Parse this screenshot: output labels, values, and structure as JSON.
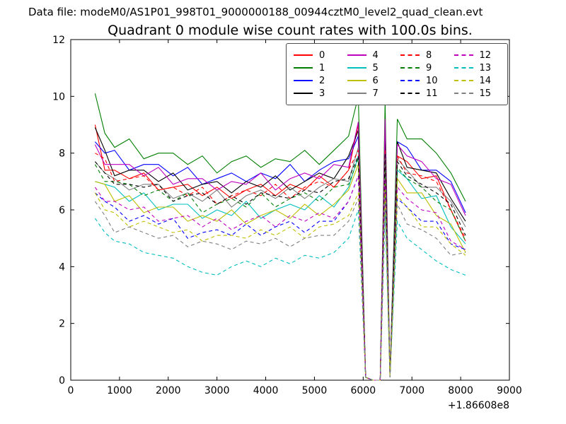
{
  "header": {
    "data_file": "Data file: modeM0/AS1P01_998T01_9000000188_00944cztM0_level2_quad_clean.evt"
  },
  "chart_data": {
    "type": "line",
    "title": "Quadrant 0 module wise count rates with 100.0s bins.",
    "xlabel": "",
    "ylabel": "",
    "xlim": [
      0,
      9000
    ],
    "ylim": [
      0,
      12
    ],
    "xticks": [
      0,
      1000,
      2000,
      3000,
      4000,
      5000,
      6000,
      7000,
      8000,
      9000
    ],
    "yticks": [
      0,
      2,
      4,
      6,
      8,
      10,
      12
    ],
    "x_offset_label": "+1.86608e8",
    "grid": false,
    "legend_position": "upper center",
    "legend_columns": 4,
    "x": [
      500,
      700,
      900,
      1200,
      1500,
      1800,
      2100,
      2400,
      2700,
      3000,
      3300,
      3600,
      3900,
      4200,
      4500,
      4800,
      5100,
      5400,
      5700,
      5900,
      6050,
      6200,
      6350,
      6450,
      6550,
      6700,
      6900,
      7200,
      7500,
      7800,
      8100
    ],
    "series": [
      {
        "label": "0",
        "color": "#ff0000",
        "dash": false,
        "values": [
          9.0,
          7.4,
          7.4,
          7.1,
          7.3,
          6.7,
          6.8,
          6.9,
          6.5,
          6.8,
          6.4,
          6.7,
          6.9,
          6.5,
          6.9,
          6.7,
          7.2,
          6.8,
          7.4,
          9.0,
          0.1,
          0.0,
          0.0,
          8.2,
          0.1,
          7.9,
          7.7,
          7.1,
          7.2,
          6.0,
          4.9
        ]
      },
      {
        "label": "1",
        "color": "#007f00",
        "dash": false,
        "values": [
          10.1,
          8.7,
          8.2,
          8.5,
          7.8,
          8.0,
          8.0,
          7.6,
          7.9,
          7.3,
          7.7,
          7.9,
          7.5,
          7.8,
          7.7,
          8.1,
          7.6,
          8.1,
          8.6,
          10.0,
          0.1,
          0.0,
          0.0,
          9.8,
          0.1,
          9.2,
          8.5,
          8.5,
          8.0,
          7.3,
          6.3
        ]
      },
      {
        "label": "2",
        "color": "#0000ff",
        "dash": false,
        "values": [
          8.4,
          8.0,
          8.1,
          7.4,
          7.6,
          7.6,
          7.2,
          7.5,
          6.9,
          7.1,
          7.3,
          7.0,
          7.3,
          7.1,
          7.6,
          7.0,
          7.4,
          7.7,
          7.8,
          8.6,
          0.1,
          0.0,
          0.0,
          8.7,
          0.1,
          8.4,
          8.2,
          7.4,
          7.4,
          7.0,
          5.9
        ]
      },
      {
        "label": "3",
        "color": "#000000",
        "dash": false,
        "values": [
          8.9,
          8.1,
          7.2,
          7.4,
          7.4,
          7.0,
          7.3,
          6.7,
          6.9,
          7.0,
          6.6,
          7.0,
          6.8,
          7.2,
          6.7,
          7.0,
          7.3,
          7.1,
          7.9,
          8.8,
          0.1,
          0.0,
          0.0,
          8.4,
          0.1,
          8.4,
          7.5,
          7.4,
          7.3,
          6.4,
          5.6
        ]
      },
      {
        "label": "4",
        "color": "#bf00bf",
        "dash": false,
        "values": [
          8.3,
          7.6,
          7.6,
          7.6,
          7.2,
          7.5,
          6.9,
          7.1,
          7.1,
          6.7,
          7.0,
          6.9,
          7.3,
          6.7,
          7.1,
          7.3,
          7.1,
          7.6,
          7.5,
          9.1,
          0.1,
          0.0,
          0.0,
          9.2,
          0.1,
          8.3,
          7.9,
          7.7,
          7.1,
          6.9,
          5.8
        ]
      },
      {
        "label": "5",
        "color": "#00bfbf",
        "dash": false,
        "values": [
          7.0,
          6.9,
          6.8,
          6.3,
          6.6,
          6.0,
          6.2,
          6.2,
          5.7,
          6.0,
          5.8,
          6.3,
          5.7,
          6.0,
          6.2,
          6.0,
          6.5,
          6.1,
          6.8,
          7.9,
          0.1,
          0.0,
          0.0,
          7.5,
          0.1,
          7.4,
          7.1,
          6.4,
          6.5,
          5.4,
          4.8
        ]
      },
      {
        "label": "6",
        "color": "#bfbf00",
        "dash": false,
        "values": [
          7.0,
          6.9,
          6.3,
          6.5,
          5.9,
          6.1,
          6.1,
          5.6,
          5.8,
          5.6,
          6.0,
          5.5,
          5.8,
          6.0,
          5.7,
          6.2,
          5.8,
          6.2,
          6.7,
          7.6,
          0.1,
          0.0,
          0.0,
          7.3,
          0.1,
          7.1,
          6.6,
          6.6,
          5.8,
          5.5,
          4.5
        ]
      },
      {
        "label": "7",
        "color": "#7f7f7f",
        "dash": false,
        "values": [
          7.7,
          7.3,
          7.1,
          6.7,
          6.9,
          6.9,
          6.4,
          6.6,
          6.3,
          6.7,
          6.1,
          6.5,
          6.7,
          6.4,
          6.8,
          6.4,
          6.8,
          7.1,
          7.0,
          8.2,
          0.1,
          0.0,
          0.0,
          8.0,
          0.1,
          7.8,
          7.4,
          6.8,
          6.8,
          6.3,
          5.4
        ]
      },
      {
        "label": "8",
        "color": "#ff0000",
        "dash": true,
        "values": [
          8.0,
          7.8,
          7.0,
          7.1,
          7.2,
          6.7,
          6.8,
          6.5,
          6.8,
          6.2,
          6.5,
          6.7,
          6.5,
          6.9,
          6.4,
          6.8,
          7.0,
          6.8,
          7.4,
          8.1,
          0.1,
          0.0,
          0.0,
          8.1,
          0.1,
          7.9,
          7.3,
          7.2,
          7.0,
          6.0,
          5.0
        ]
      },
      {
        "label": "9",
        "color": "#007f00",
        "dash": true,
        "values": [
          7.6,
          7.0,
          7.0,
          6.9,
          6.5,
          6.7,
          6.3,
          6.6,
          5.9,
          6.2,
          6.4,
          6.1,
          6.6,
          6.1,
          6.4,
          6.6,
          6.3,
          6.8,
          6.9,
          7.8,
          0.1,
          0.0,
          0.0,
          7.8,
          0.1,
          7.5,
          7.1,
          6.8,
          6.3,
          6.0,
          4.9
        ]
      },
      {
        "label": "10",
        "color": "#0000ff",
        "dash": true,
        "values": [
          6.6,
          6.3,
          6.1,
          5.6,
          5.8,
          5.5,
          5.7,
          5.0,
          5.2,
          5.3,
          5.1,
          5.5,
          5.1,
          5.4,
          5.6,
          5.2,
          5.6,
          5.6,
          6.3,
          7.2,
          0.1,
          0.0,
          0.0,
          6.8,
          0.1,
          6.4,
          6.1,
          5.6,
          5.6,
          4.8,
          4.6
        ]
      },
      {
        "label": "11",
        "color": "#000000",
        "dash": true,
        "values": [
          7.7,
          7.3,
          6.9,
          6.9,
          6.8,
          6.9,
          6.3,
          6.5,
          6.6,
          6.2,
          6.5,
          6.2,
          6.6,
          6.5,
          6.4,
          6.7,
          6.6,
          7.0,
          7.1,
          7.9,
          0.1,
          0.0,
          0.0,
          8.0,
          0.1,
          7.7,
          7.2,
          6.9,
          6.6,
          6.2,
          5.1
        ]
      },
      {
        "label": "12",
        "color": "#bf00bf",
        "dash": true,
        "values": [
          6.8,
          6.3,
          6.3,
          6.0,
          6.1,
          5.6,
          5.7,
          5.8,
          5.4,
          5.7,
          5.3,
          5.6,
          5.8,
          5.4,
          5.8,
          5.6,
          5.9,
          5.7,
          6.3,
          7.2,
          0.1,
          0.0,
          0.0,
          7.1,
          0.1,
          6.8,
          6.4,
          6.0,
          5.9,
          4.9,
          4.6
        ]
      },
      {
        "label": "13",
        "color": "#00bfbf",
        "dash": true,
        "values": [
          5.7,
          5.2,
          4.9,
          4.8,
          4.5,
          4.4,
          4.3,
          4.0,
          3.8,
          3.7,
          4.0,
          4.2,
          4.0,
          4.3,
          4.1,
          4.4,
          4.3,
          4.5,
          5.0,
          6.0,
          0.1,
          0.0,
          0.0,
          5.9,
          0.1,
          5.6,
          5.0,
          4.6,
          4.2,
          3.9,
          3.7
        ]
      },
      {
        "label": "14",
        "color": "#bfbf00",
        "dash": true,
        "values": [
          6.6,
          6.0,
          5.9,
          5.4,
          5.6,
          5.4,
          5.2,
          5.3,
          4.9,
          5.1,
          5.1,
          5.0,
          5.3,
          5.1,
          5.4,
          5.0,
          5.4,
          5.5,
          5.8,
          6.6,
          0.1,
          0.0,
          0.0,
          6.7,
          0.1,
          6.5,
          6.1,
          5.4,
          5.4,
          4.8,
          4.4
        ]
      },
      {
        "label": "15",
        "color": "#7f7f7f",
        "dash": true,
        "values": [
          6.3,
          5.8,
          5.2,
          5.4,
          5.2,
          5.0,
          5.1,
          4.7,
          4.9,
          4.8,
          4.6,
          4.9,
          4.8,
          5.0,
          4.7,
          5.0,
          5.1,
          5.1,
          5.6,
          6.4,
          0.1,
          0.0,
          0.0,
          6.4,
          0.1,
          6.2,
          5.5,
          5.3,
          5.0,
          4.4,
          4.5
        ]
      }
    ]
  }
}
